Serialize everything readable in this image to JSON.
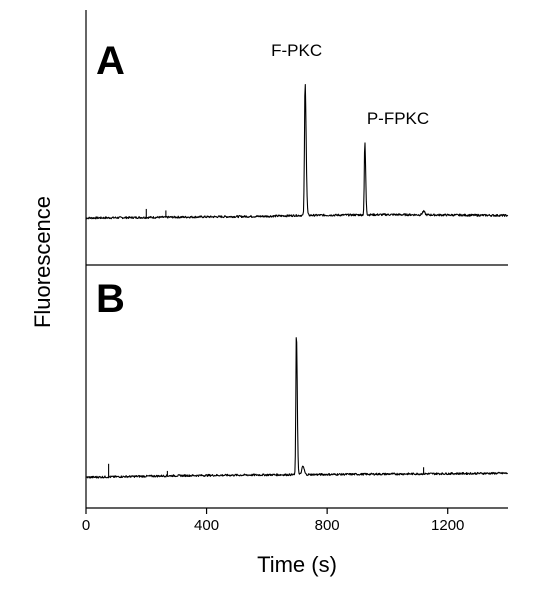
{
  "chart_data": {
    "type": "line",
    "xlabel": "Time (s)",
    "ylabel": "Fluorescence",
    "xlim": [
      0,
      1400
    ],
    "ylim": [
      0,
      1
    ],
    "xticks": [
      {
        "value": 0,
        "label": "0"
      },
      {
        "value": 400,
        "label": "400"
      },
      {
        "value": 800,
        "label": "800"
      },
      {
        "value": 1200,
        "label": "1200"
      }
    ],
    "panels": [
      {
        "letter": "A",
        "baseline": [
          [
            0,
            0.2
          ],
          [
            300,
            0.205
          ],
          [
            600,
            0.21
          ],
          [
            700,
            0.215
          ],
          [
            1000,
            0.22
          ],
          [
            1400,
            0.215
          ]
        ],
        "spikes": [
          [
            200,
            0.05
          ],
          [
            265,
            0.04
          ]
        ],
        "peaks": [
          {
            "label": "F-PKC",
            "x": 727,
            "height": 1.0,
            "width": 6
          },
          {
            "label": "P-FPKC",
            "x": 925,
            "height": 0.55,
            "width": 5
          }
        ],
        "bumps": [
          [
            1120,
            0.02
          ]
        ]
      },
      {
        "letter": "B",
        "baseline": [
          [
            0,
            0.12
          ],
          [
            300,
            0.13
          ],
          [
            600,
            0.135
          ],
          [
            1000,
            0.14
          ],
          [
            1400,
            0.145
          ]
        ],
        "spikes": [
          [
            75,
            0.08
          ],
          [
            270,
            0.03
          ],
          [
            1120,
            0.04
          ]
        ],
        "peaks": [
          {
            "label": "",
            "x": 698,
            "height": 1.0,
            "width": 5
          }
        ],
        "bumps": [
          [
            720,
            0.05
          ]
        ]
      }
    ]
  }
}
